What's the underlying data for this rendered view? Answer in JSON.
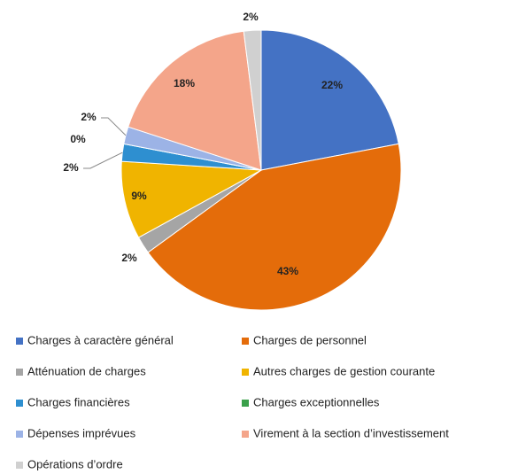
{
  "chart_data": {
    "type": "pie",
    "categories": [
      "Charges à caractère général",
      "Charges de personnel",
      "Atténuation de charges",
      "Autres charges de gestion courante",
      "Charges financières",
      "Charges exceptionnelles",
      "Dépenses imprévues",
      "Virement à la section d’investissement",
      "Opérations d’ordre"
    ],
    "values": [
      22,
      43,
      2,
      9,
      2,
      0,
      2,
      18,
      2
    ],
    "value_labels": [
      "22%",
      "43%",
      "2%",
      "9%",
      "2%",
      "0%",
      "2%",
      "18%",
      "2%"
    ],
    "colors": [
      "#4472c4",
      "#e46c0a",
      "#a5a5a5",
      "#f0b400",
      "#2e8fd0",
      "#3aa04a",
      "#9cb3e6",
      "#f4a58a",
      "#d0d0d0"
    ],
    "legend": "bottom"
  }
}
